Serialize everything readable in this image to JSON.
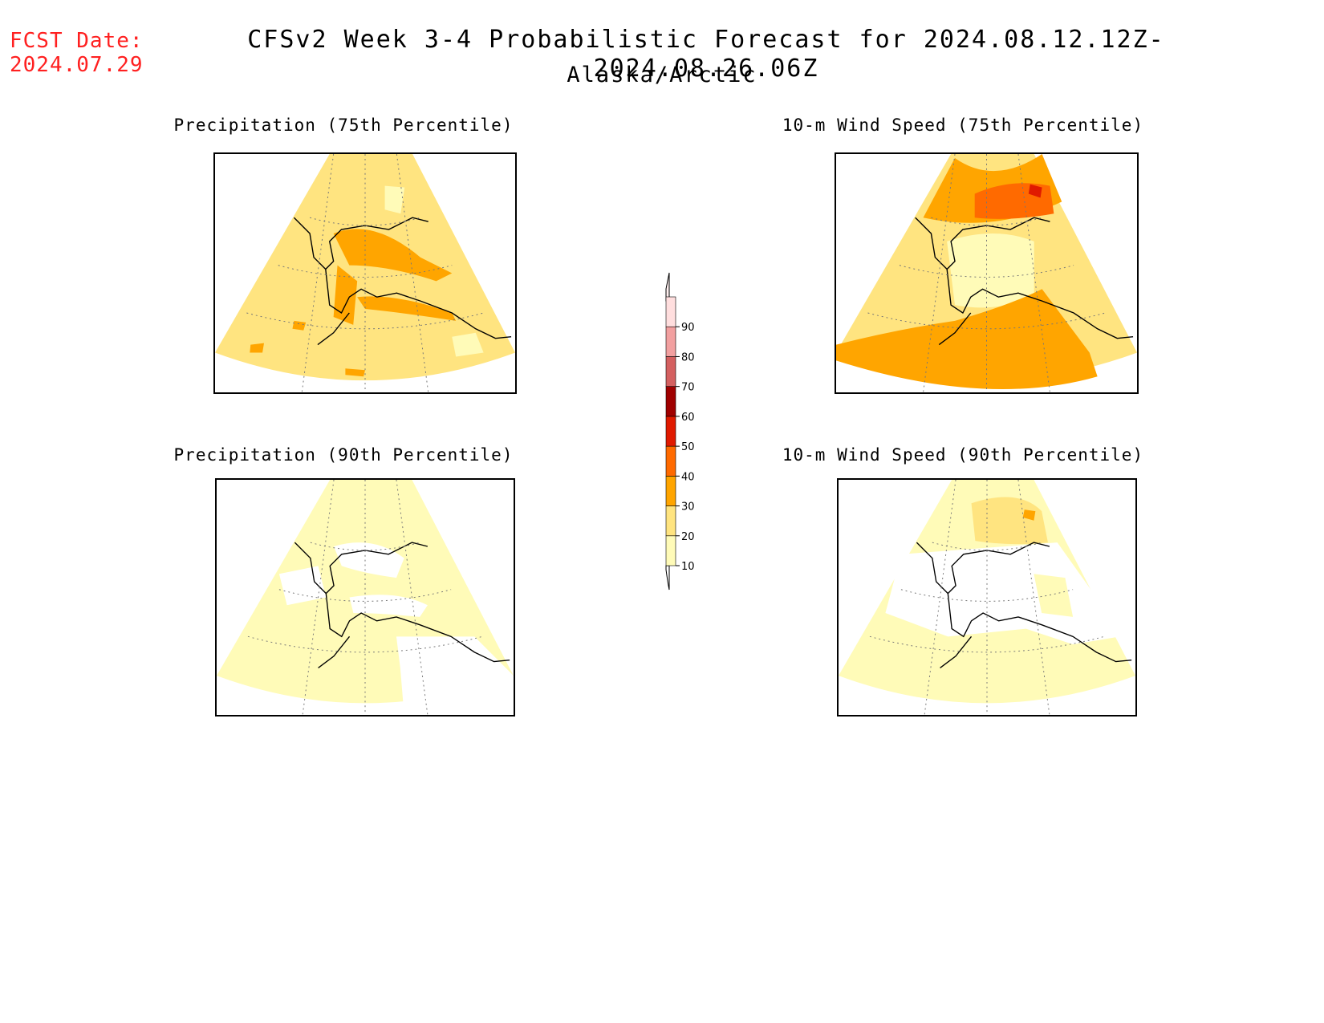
{
  "header": {
    "fcst_label": "FCST Date:",
    "fcst_date": "2024.07.29",
    "title": "CFSv2 Week 3-4 Probabilistic Forecast for 2024.08.12.12Z-2024.08.26.06Z",
    "region": "Alaska/Arctic"
  },
  "panels": [
    {
      "title": "Precipitation (75th Percentile)",
      "base_level": 20,
      "patches": [
        30,
        30,
        30,
        30,
        10
      ]
    },
    {
      "title": "10-m Wind Speed (75th Percentile)",
      "base_level": 20,
      "patches": [
        40,
        40,
        50,
        10,
        30
      ]
    },
    {
      "title": "Precipitation (90th Percentile)",
      "base_level": 10,
      "patches": [
        0,
        0,
        0,
        10,
        0
      ]
    },
    {
      "title": "10-m Wind Speed (90th Percentile)",
      "base_level": 10,
      "patches": [
        0,
        20,
        30,
        0,
        10
      ]
    }
  ],
  "colorbar": {
    "labels": [
      "10",
      "20",
      "30",
      "40",
      "50",
      "60",
      "70",
      "80",
      "90"
    ],
    "colors": [
      "#fffbb8",
      "#ffe480",
      "#ffa500",
      "#ff6a00",
      "#e01a00",
      "#a00000",
      "#d46060",
      "#f2a0a0",
      "#ffdede"
    ]
  }
}
